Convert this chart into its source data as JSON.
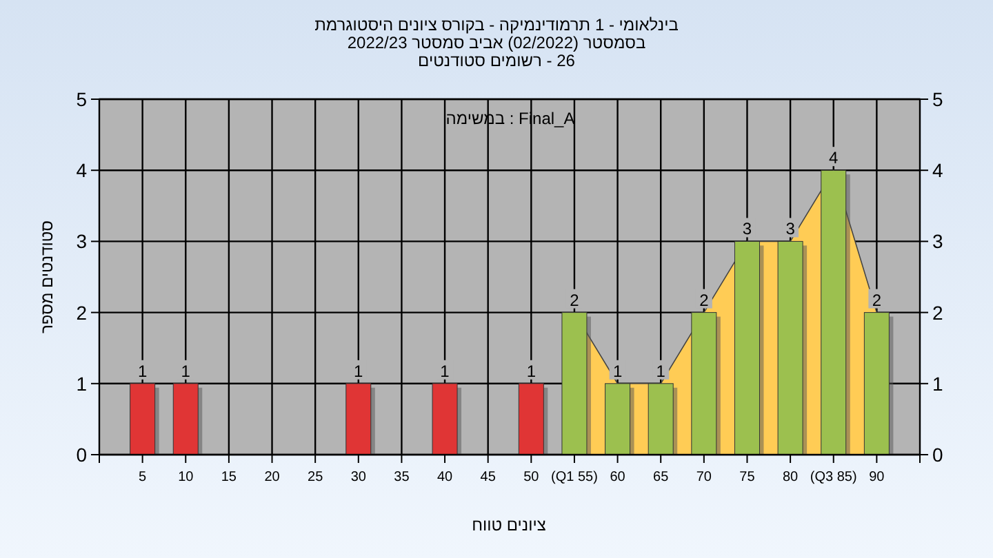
{
  "chart_data": {
    "type": "bar",
    "title": "בינלאומי - 1 תרמודינמיקה - בקורס ציונים היסטוגרמת",
    "subtitle": "בסמסטר  (02/2022)  אביב סמסטר 2022/23",
    "annotations": [
      "26 - רשומים סטודנטים",
      "Final_A : במשימה"
    ],
    "xlabel": "ציונים טווח",
    "ylabel": "סטודנטים מספר",
    "x": [
      5,
      10,
      30,
      40,
      50,
      55,
      60,
      65,
      70,
      75,
      80,
      85,
      90
    ],
    "xlim": [
      0,
      95
    ],
    "xticks": [
      5,
      10,
      15,
      20,
      25,
      30,
      35,
      40,
      45,
      50,
      {
        "value": 55,
        "label": "(Q1 55)"
      },
      60,
      65,
      70,
      75,
      80,
      {
        "value": 85,
        "label": "(Q3 85)"
      },
      90
    ],
    "ylim": [
      0,
      5
    ],
    "yticks": [
      0,
      1,
      2,
      3,
      4,
      5
    ],
    "y2lim": [
      0,
      5
    ],
    "y2ticks": [
      0,
      1,
      2,
      3,
      4,
      5
    ],
    "grid": true,
    "series": [
      {
        "type": "area",
        "x": [
          55,
          60,
          65,
          70,
          75,
          80,
          85,
          90
        ],
        "values": [
          2,
          1,
          1,
          2,
          3,
          3,
          4,
          2
        ],
        "color": "#ffcc55"
      },
      {
        "type": "bar",
        "values": [
          1,
          1,
          1,
          1,
          1,
          2,
          1,
          1,
          2,
          3,
          3,
          4,
          2
        ],
        "value_labels": [
          "1",
          "1",
          "1",
          "1",
          "1",
          "2",
          "1",
          "1",
          "2",
          "3",
          "3",
          "4",
          "2"
        ],
        "colors": [
          "#e03535",
          "#e03535",
          "#e03535",
          "#e03535",
          "#e03535",
          "#9cc04f",
          "#9cc04f",
          "#9cc04f",
          "#9cc04f",
          "#9cc04f",
          "#9cc04f",
          "#9cc04f",
          "#9cc04f"
        ]
      }
    ]
  }
}
